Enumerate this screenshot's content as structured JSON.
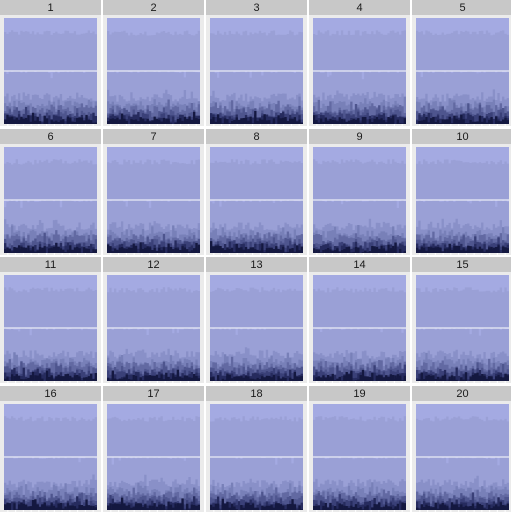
{
  "chart_data": {
    "type": "area",
    "facet_labels": [
      "1",
      "2",
      "3",
      "4",
      "5",
      "6",
      "7",
      "8",
      "9",
      "10",
      "11",
      "12",
      "13",
      "14",
      "15",
      "16",
      "17",
      "18",
      "19",
      "20"
    ],
    "grid": true,
    "axes_visible": false,
    "strip_color": "#c8c8c8",
    "panel_background": "#ebebeb",
    "gridline_color": "#ffffff",
    "band_colors": [
      "#a4aae2",
      "#9aa0d6",
      "#8990c8",
      "#7880b8",
      "#6269a2",
      "#4e558e",
      "#3a4078",
      "#262b5e",
      "#141840"
    ],
    "layer_boundaries_y": [
      0.5,
      0.25,
      0.18,
      0.14,
      0.1,
      0.07,
      0.05,
      0.03,
      0.015
    ],
    "y_range": [
      0,
      1
    ]
  }
}
